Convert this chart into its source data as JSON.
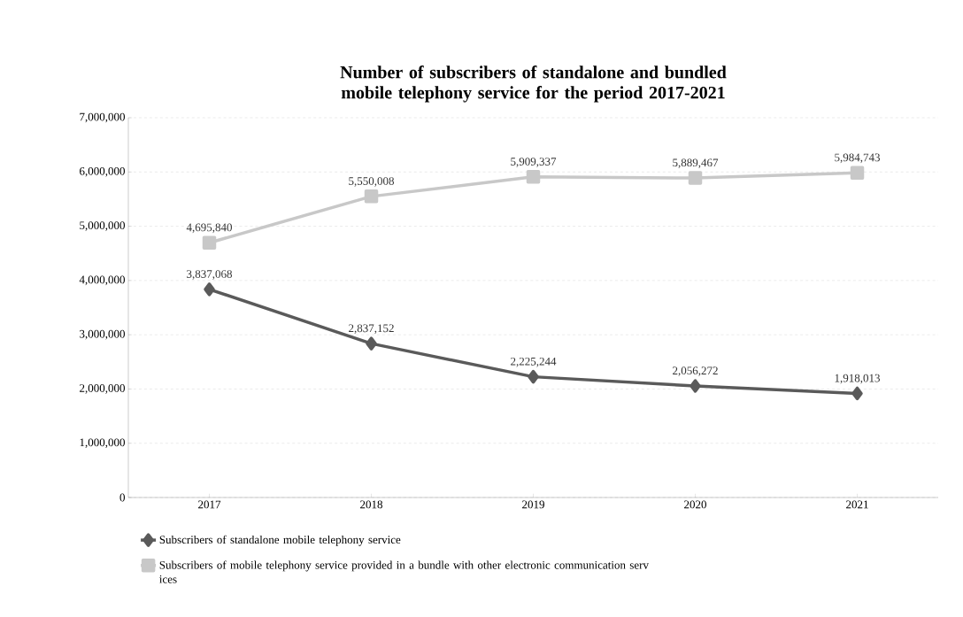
{
  "chart_data": {
    "type": "line",
    "title": "Number of subscribers of standalone and bundled mobile telephony service for the period 2017-2021",
    "categories": [
      "2017",
      "2018",
      "2019",
      "2020",
      "2021"
    ],
    "series": [
      {
        "name": "Subscribers of standalone mobile telephony service",
        "color": "#5a5a5a",
        "marker": "diamond",
        "values": [
          3837068,
          2837152,
          2225244,
          2056272,
          1918013
        ],
        "value_labels": [
          "3,837,068",
          "2,837,152",
          "2,225,244",
          "2,056,272",
          "1,918,013"
        ]
      },
      {
        "name": "Subscribers of mobile telephony service provided in a bundle with other electronic communication serv ices",
        "color": "#c8c8c8",
        "marker": "square",
        "values": [
          4695840,
          5550008,
          5909337,
          5889467,
          5984743
        ],
        "value_labels": [
          "4,695,840",
          "5,550,008",
          "5,909,337",
          "5,889,467",
          "5,984,743"
        ]
      }
    ],
    "ylim": [
      0,
      7000000
    ],
    "yticks": [
      0,
      {
        "value": 1000000,
        "label": "1,000,000"
      },
      {
        "value": 2000000,
        "label": "2,000,000"
      },
      {
        "value": 3000000,
        "label": "3,000,000"
      },
      {
        "value": 4000000,
        "label": "4,000,000"
      },
      {
        "value": 5000000,
        "label": "5,000,000"
      },
      {
        "value": 6000000,
        "label": "6,000,000"
      },
      {
        "value": 7000000,
        "label": "7,000,000"
      }
    ],
    "grid": "y",
    "legend": "bottom",
    "line_style": "solid"
  }
}
